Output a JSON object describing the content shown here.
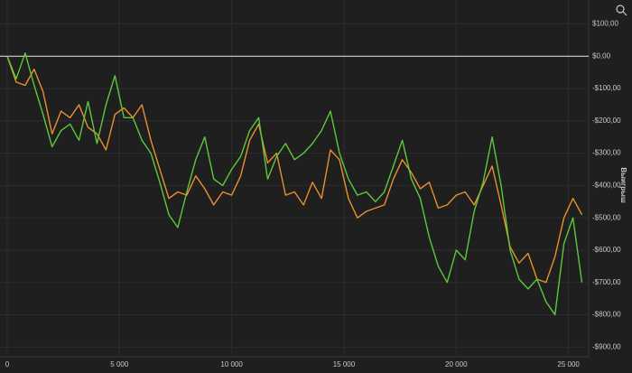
{
  "chart_data": {
    "type": "line",
    "y_axis_label": "Выигрыш",
    "x": [
      0,
      400,
      800,
      1200,
      1600,
      2000,
      2400,
      2800,
      3200,
      3600,
      4000,
      4400,
      4800,
      5200,
      5600,
      6000,
      6400,
      6800,
      7200,
      7600,
      8000,
      8400,
      8800,
      9200,
      9600,
      10000,
      10400,
      10800,
      11200,
      11600,
      12000,
      12400,
      12800,
      13200,
      13600,
      14000,
      14400,
      14800,
      15200,
      15600,
      16000,
      16400,
      16800,
      17200,
      17600,
      18000,
      18400,
      18800,
      19200,
      19600,
      20000,
      20400,
      20800,
      21200,
      21600,
      22000,
      22400,
      22800,
      23200,
      23600,
      24000,
      24400,
      24800,
      25200,
      25600
    ],
    "series": [
      {
        "color": "#e8902e",
        "values": [
          0,
          -80,
          -90,
          -40,
          -110,
          -240,
          -170,
          -190,
          -150,
          -220,
          -240,
          -290,
          -180,
          -160,
          -190,
          -150,
          -260,
          -350,
          -440,
          -420,
          -430,
          -370,
          -410,
          -460,
          -420,
          -430,
          -370,
          -260,
          -210,
          -330,
          -300,
          -430,
          -420,
          -460,
          -390,
          -440,
          -290,
          -320,
          -440,
          -500,
          -480,
          -470,
          -460,
          -380,
          -320,
          -360,
          -410,
          -390,
          -470,
          -460,
          -430,
          -420,
          -460,
          -400,
          -340,
          -460,
          -590,
          -640,
          -610,
          -690,
          -700,
          -620,
          -500,
          -440,
          -490
        ]
      },
      {
        "color": "#5cc83c",
        "values": [
          0,
          -70,
          10,
          -90,
          -180,
          -280,
          -230,
          -210,
          -260,
          -140,
          -270,
          -150,
          -60,
          -190,
          -190,
          -260,
          -300,
          -390,
          -490,
          -530,
          -420,
          -320,
          -250,
          -380,
          -400,
          -350,
          -310,
          -230,
          -190,
          -380,
          -310,
          -270,
          -320,
          -300,
          -270,
          -230,
          -170,
          -300,
          -380,
          -430,
          -420,
          -450,
          -420,
          -340,
          -260,
          -380,
          -440,
          -560,
          -650,
          -700,
          -600,
          -630,
          -480,
          -390,
          -250,
          -400,
          -600,
          -690,
          -720,
          -690,
          -760,
          -800,
          -580,
          -500,
          -700
        ]
      }
    ],
    "xlim": [
      -320,
      25900
    ],
    "ylim": [
      -930,
      135
    ],
    "xticks": [
      0,
      {
        "value": 5000,
        "label": "5 000"
      },
      {
        "value": 10000,
        "label": "10 000"
      },
      {
        "value": 15000,
        "label": "15 000"
      },
      {
        "value": 20000,
        "label": "20 000"
      },
      {
        "value": 25000,
        "label": "25 000"
      }
    ],
    "yticks": [
      {
        "value": 100,
        "label": "$100,00"
      },
      {
        "value": 0,
        "label": "$0,00"
      },
      {
        "value": -100,
        "label": "-$100,00"
      },
      {
        "value": -200,
        "label": "-$200,00"
      },
      {
        "value": -300,
        "label": "-$300,00"
      },
      {
        "value": -400,
        "label": "-$400,00"
      },
      {
        "value": -500,
        "label": "-$500,00"
      },
      {
        "value": -600,
        "label": "-$600,00"
      },
      {
        "value": -700,
        "label": "-$700,00"
      },
      {
        "value": -800,
        "label": "-$800,00"
      },
      {
        "value": -900,
        "label": "-$900,00"
      }
    ],
    "grid": true,
    "zero_line_color": "#e8e8e8"
  }
}
